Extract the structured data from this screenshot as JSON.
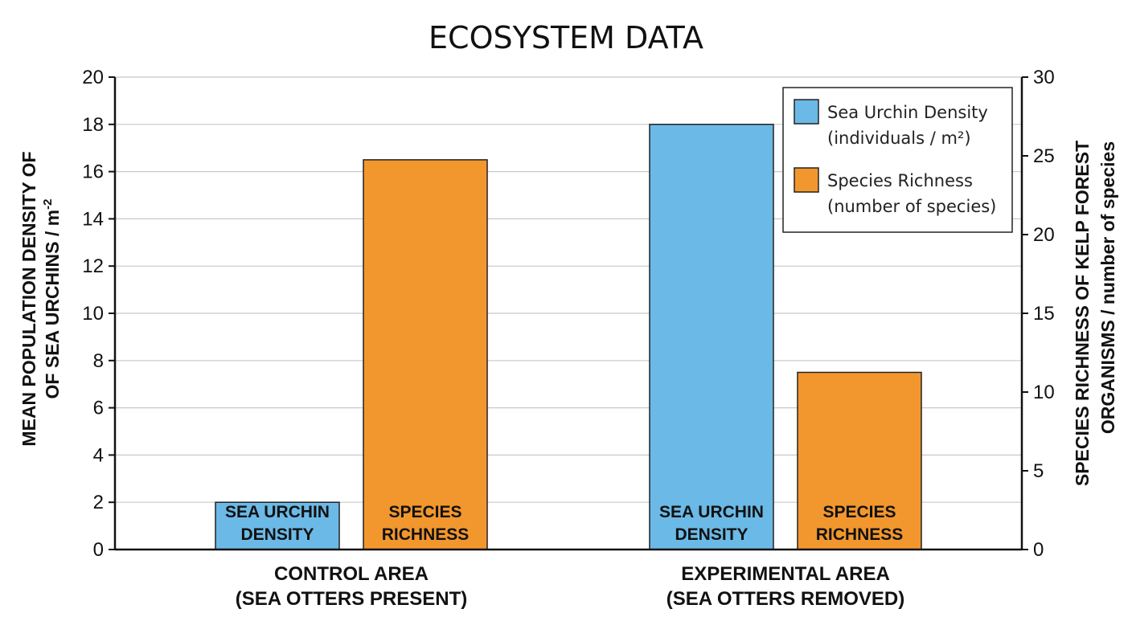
{
  "chart_data": {
    "type": "bar",
    "title": "ECOSYSTEM DATA",
    "categories": [
      {
        "line1": "CONTROL AREA",
        "line2": "(SEA OTTERS PRESENT)"
      },
      {
        "line1": "EXPERIMENTAL AREA",
        "line2": "(SEA OTTERS REMOVED)"
      }
    ],
    "series": [
      {
        "name": "Sea Urchin Density",
        "legend_line1": "Sea Urchin Density",
        "legend_line2": "(individuals / m²)",
        "bar_label_line1": "SEA URCHIN",
        "bar_label_line2": "DENSITY",
        "axis": "left",
        "color": "#6bb9e6",
        "values": [
          2,
          18
        ]
      },
      {
        "name": "Species Richness",
        "legend_line1": "Species Richness",
        "legend_line2": "(number of species)",
        "bar_label_line1": "SPECIES",
        "bar_label_line2": "RICHNESS",
        "axis": "right",
        "color": "#f2972e",
        "values": [
          24.75,
          11.25
        ]
      }
    ],
    "ylabel_left_line1": "MEAN POPULATION DENSITY OF",
    "ylabel_left_line2": "OF SEA URCHINS / m",
    "ylabel_left_sup": "-2",
    "ylabel_right_line1": "SPECIES RICHNESS OF KELP FOREST",
    "ylabel_right_line2": "ORGANISMS / number of species",
    "ylim_left": [
      0,
      20
    ],
    "ylim_right": [
      0,
      30
    ],
    "yticks_left": [
      "0",
      "2",
      "4",
      "6",
      "8",
      "10",
      "12",
      "14",
      "16",
      "18",
      "20"
    ],
    "yticks_right": [
      "0",
      "5",
      "10",
      "15",
      "20",
      "25",
      "30"
    ],
    "grid": true,
    "legend_position": "top-right"
  }
}
